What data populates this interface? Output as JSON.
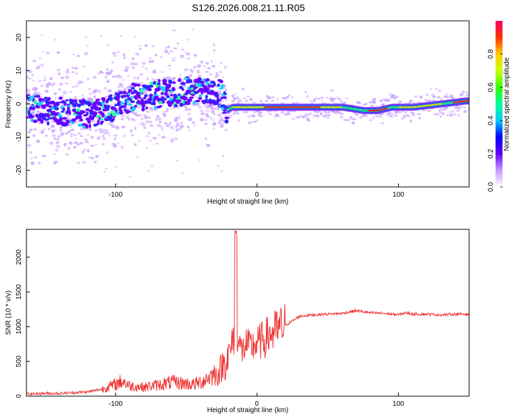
{
  "title": "S126.2026.008.21.11.R05",
  "chart_data": [
    {
      "type": "heatmap",
      "xlabel": "Height of straight line (km)",
      "ylabel": "Frequency (Hz)",
      "xlim": [
        -163,
        150
      ],
      "ylim": [
        -25,
        25
      ],
      "xticks": [
        -100,
        0,
        100
      ],
      "yticks": [
        -20,
        -10,
        0,
        10,
        20
      ],
      "colorbar": {
        "label": "Normalized spectral amplitude",
        "range": [
          0,
          1
        ],
        "ticks": [
          0,
          0.2,
          0.4,
          0.6,
          0.8
        ],
        "colors": [
          "#ffffff",
          "#cc99ff",
          "#6600ff",
          "#0000ff",
          "#00ccff",
          "#00ff99",
          "#33ff00",
          "#ccff00",
          "#ffcc00",
          "#ff3300",
          "#ff0066"
        ]
      },
      "ridge": {
        "x": [
          -163,
          -150,
          -140,
          -130,
          -120,
          -110,
          -100,
          -90,
          -80,
          -70,
          -60,
          -50,
          -40,
          -30,
          -25,
          -22,
          -18,
          -10,
          0,
          20,
          40,
          60,
          75,
          85,
          95,
          110,
          130,
          150
        ],
        "y": [
          -1,
          -2,
          -2,
          -3,
          -3,
          -2,
          -1,
          2,
          2,
          3,
          3,
          4,
          4,
          4,
          3,
          -2,
          -1,
          -1,
          -1,
          -1,
          -1,
          -1,
          -2,
          -2,
          -1,
          -1,
          0,
          1
        ]
      }
    },
    {
      "type": "line",
      "xlabel": "Height of straight line (km)",
      "ylabel": "SNR (10 * v/v)",
      "xlim": [
        -163,
        150
      ],
      "ylim": [
        0,
        2400
      ],
      "xticks": [
        -100,
        0,
        100
      ],
      "yticks": [
        0,
        500,
        1000,
        1500,
        2000
      ],
      "line_color": "#ee3333",
      "series": [
        {
          "x": [
            -163,
            -150,
            -140,
            -130,
            -120,
            -110,
            -100,
            -95,
            -90,
            -80,
            -70,
            -60,
            -50,
            -45,
            -40,
            -35,
            -30,
            -28,
            -25,
            -22,
            -20,
            -18,
            -16,
            -15,
            -14,
            -12,
            -10,
            -8,
            -5,
            0,
            5,
            10,
            15,
            20,
            25,
            30,
            40,
            50,
            60,
            70,
            80,
            90,
            100,
            105,
            110,
            120,
            130,
            140,
            150
          ],
          "y": [
            30,
            40,
            40,
            50,
            60,
            100,
            170,
            220,
            150,
            130,
            160,
            200,
            180,
            170,
            200,
            260,
            320,
            300,
            420,
            520,
            600,
            700,
            900,
            2400,
            850,
            700,
            650,
            750,
            700,
            760,
            820,
            900,
            950,
            1020,
            1080,
            1150,
            1170,
            1180,
            1190,
            1230,
            1200,
            1190,
            1170,
            1200,
            1180,
            1180,
            1170,
            1180,
            1180
          ]
        }
      ]
    }
  ]
}
